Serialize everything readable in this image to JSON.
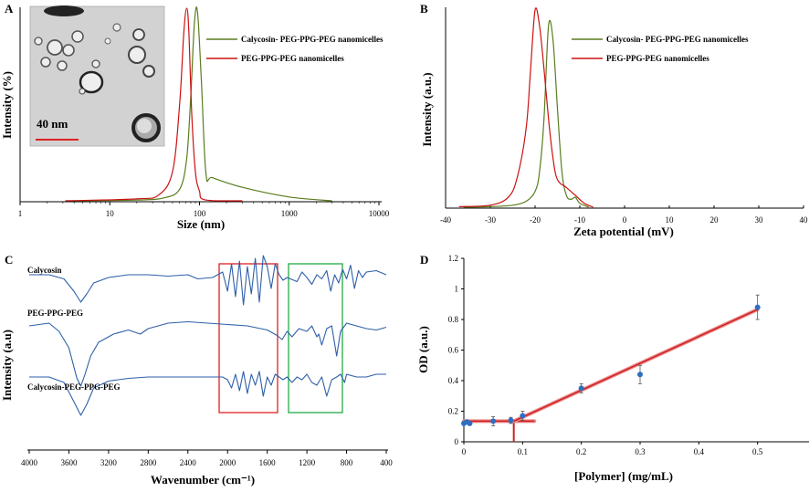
{
  "panels": {
    "A": {
      "letter": "A",
      "ylabel": "Intensity (%)",
      "xlabel": "Size (nm)",
      "inset_scale": "40 nm",
      "legend": [
        "Calycosin- PEG-PPG-PEG nanomicelles",
        "PEG-PPG-PEG nanomicelles"
      ]
    },
    "B": {
      "letter": "B",
      "ylabel": "Intensity (a.u.)",
      "xlabel": "Zeta potential (mV)",
      "legend": [
        "Calycosin- PEG-PPG-PEG nanomicelles",
        "PEG-PPG-PEG nanomicelles"
      ]
    },
    "C": {
      "letter": "C",
      "ylabel": "Intensity (a.u)",
      "xlabel": "Wavenumber (cm⁻¹)",
      "trace_labels": [
        "Calycosin",
        "PEG-PPG-PEG",
        "Calycosin-PEG-PPG-PEG"
      ]
    },
    "D": {
      "letter": "D",
      "ylabel": "OD (a.u.)",
      "xlabel": "[Polymer] (mg/mL)"
    }
  },
  "colors": {
    "green": "#5a7d1e",
    "red": "#cc1111",
    "blue": "#2e5fa8",
    "fit": "#cc2222",
    "inset_bar": "#dd2222",
    "ftir_box_red": "#e02020",
    "ftir_box_green": "#22aa44"
  },
  "chart_data": [
    {
      "panel": "A",
      "type": "line",
      "xscale": "log",
      "xlim": [
        1,
        10000
      ],
      "x_ticks": [
        "1",
        "10",
        "100",
        "1000",
        "10000"
      ],
      "series": [
        {
          "name": "Calycosin- PEG-PPG-PEG nanomicelles",
          "color": "#5a7d1e",
          "x": [
            3.2,
            20,
            40,
            60,
            72,
            80,
            88,
            95,
            105,
            118,
            140,
            300,
            1000,
            3000
          ],
          "y": [
            0,
            0.4,
            1.5,
            6,
            22,
            55,
            93,
            98,
            62,
            14,
            12,
            7,
            2,
            0
          ]
        },
        {
          "name": "PEG-PPG-PEG nanomicelles",
          "color": "#cc1111",
          "x": [
            3.2,
            20,
            35,
            50,
            60,
            67,
            72,
            76,
            82,
            90,
            100,
            115,
            300
          ],
          "y": [
            0,
            1,
            3,
            15,
            50,
            88,
            100,
            88,
            45,
            15,
            5,
            0.5,
            0
          ]
        }
      ]
    },
    {
      "panel": "B",
      "type": "line",
      "xlim": [
        -40,
        40
      ],
      "x_ticks": [
        "-40",
        "-30",
        "-20",
        "-10",
        "0",
        "10",
        "20",
        "30",
        "40"
      ],
      "series": [
        {
          "name": "Calycosin- PEG-PPG-PEG nanomicelles",
          "color": "#5a7d1e",
          "x": [
            -36,
            -30,
            -25,
            -22,
            -20,
            -19,
            -18,
            -17,
            -16,
            -15,
            -14,
            -13,
            -12,
            -11,
            -10,
            -8
          ],
          "y": [
            0,
            0.3,
            1,
            3,
            8,
            18,
            45,
            92,
            85,
            50,
            18,
            6,
            4,
            5,
            2,
            0
          ]
        },
        {
          "name": "PEG-PPG-PEG nanomicelles",
          "color": "#cc1111",
          "x": [
            -37,
            -30,
            -26,
            -24,
            -22,
            -21,
            -20,
            -19,
            -18,
            -17,
            -16,
            -15,
            -13,
            -11,
            -9,
            -7
          ],
          "y": [
            0.3,
            1,
            5,
            15,
            40,
            70,
            100,
            92,
            70,
            45,
            25,
            14,
            10,
            6,
            2,
            0
          ]
        }
      ]
    },
    {
      "panel": "C",
      "type": "line",
      "xlim": [
        4000,
        400
      ],
      "x_ticks": [
        "4000",
        "3600",
        "3200",
        "2800",
        "2400",
        "2000",
        "1600",
        "1200",
        "800",
        "400"
      ],
      "series": [
        {
          "name": "Calycosin",
          "color": "#2e5fa8",
          "x": [
            4000,
            3800,
            3650,
            3550,
            3480,
            3420,
            3350,
            3200,
            3000,
            2800,
            2600,
            2400,
            2300,
            2150,
            2050,
            2000,
            1960,
            1920,
            1880,
            1840,
            1800,
            1760,
            1720,
            1680,
            1640,
            1600,
            1560,
            1520,
            1480,
            1440,
            1400,
            1300,
            1250,
            1200,
            1150,
            1100,
            1050,
            1000,
            960,
            920,
            880,
            840,
            800,
            760,
            720,
            680,
            640,
            600,
            500,
            400
          ],
          "y": [
            0,
            0,
            -3,
            -12,
            -20,
            -14,
            -6,
            -2,
            0,
            0,
            -1,
            0,
            -3,
            -2,
            2,
            -12,
            8,
            -16,
            10,
            -22,
            6,
            -14,
            12,
            -20,
            14,
            6,
            -10,
            8,
            0,
            -4,
            -2,
            -5,
            2,
            -2,
            -7,
            0,
            -3,
            3,
            -12,
            0,
            -6,
            4,
            -3,
            7,
            -10,
            3,
            -2,
            2,
            3,
            0
          ]
        },
        {
          "name": "PEG-PPG-PEG",
          "color": "#2e5fa8",
          "x": [
            4000,
            3800,
            3700,
            3600,
            3520,
            3480,
            3440,
            3380,
            3300,
            3150,
            3000,
            2880,
            2800,
            2600,
            2400,
            2200,
            2000,
            1800,
            1600,
            1500,
            1450,
            1400,
            1350,
            1280,
            1200,
            1150,
            1100,
            1080,
            1050,
            1000,
            950,
            900,
            860,
            820,
            800,
            700,
            600,
            500,
            400
          ],
          "y": [
            0,
            2,
            -4,
            -16,
            -38,
            -44,
            -36,
            -22,
            -12,
            -6,
            -3,
            -6,
            -2,
            2,
            3,
            2,
            1,
            0,
            -3,
            -7,
            -10,
            -4,
            -8,
            -2,
            -4,
            0,
            -8,
            -6,
            -14,
            -2,
            0,
            -22,
            -4,
            0,
            2,
            0,
            -2,
            -3,
            -1
          ]
        },
        {
          "name": "Calycosin-PEG-PPG-PEG",
          "color": "#2e5fa8",
          "x": [
            4000,
            3800,
            3650,
            3550,
            3480,
            3420,
            3350,
            3200,
            3000,
            2800,
            2600,
            2400,
            2200,
            2050,
            2000,
            1960,
            1920,
            1880,
            1840,
            1800,
            1760,
            1720,
            1680,
            1640,
            1600,
            1560,
            1520,
            1480,
            1440,
            1400,
            1350,
            1300,
            1250,
            1200,
            1150,
            1100,
            1050,
            1000,
            950,
            900,
            860,
            820,
            800,
            700,
            600,
            500,
            400
          ],
          "y": [
            0,
            0,
            -4,
            -18,
            -28,
            -20,
            -8,
            -3,
            -1,
            0,
            0,
            0,
            0,
            0,
            -2,
            -8,
            2,
            -10,
            4,
            -12,
            2,
            -6,
            4,
            -14,
            0,
            -6,
            2,
            0,
            -2,
            0,
            -4,
            0,
            -2,
            2,
            -4,
            -6,
            0,
            -14,
            -2,
            0,
            2,
            -4,
            2,
            0,
            0,
            2,
            2
          ]
        }
      ]
    },
    {
      "panel": "D",
      "type": "scatter",
      "xlim": [
        0,
        0.6
      ],
      "ylim": [
        0,
        1.2
      ],
      "x_ticks": [
        "0",
        "0.1",
        "0.2",
        "0.3",
        "0.4",
        "0.5",
        "0.6"
      ],
      "y_ticks": [
        "0",
        "0.2",
        "0.4",
        "0.6",
        "0.8",
        "1",
        "1.2"
      ],
      "points": {
        "x": [
          0,
          0.005,
          0.01,
          0.05,
          0.08,
          0.1,
          0.2,
          0.3,
          0.5
        ],
        "y": [
          0.12,
          0.13,
          0.12,
          0.135,
          0.14,
          0.17,
          0.35,
          0.44,
          0.88
        ],
        "err": [
          0.01,
          0.01,
          0.01,
          0.03,
          0.02,
          0.03,
          0.03,
          0.06,
          0.08
        ]
      },
      "fit_lines": [
        {
          "x": [
            0,
            0.12
          ],
          "y": [
            0.135,
            0.135
          ]
        },
        {
          "x": [
            0.085,
            0.5
          ],
          "y": [
            0.135,
            0.865
          ]
        }
      ],
      "intersection_x": 0.085
    }
  ]
}
